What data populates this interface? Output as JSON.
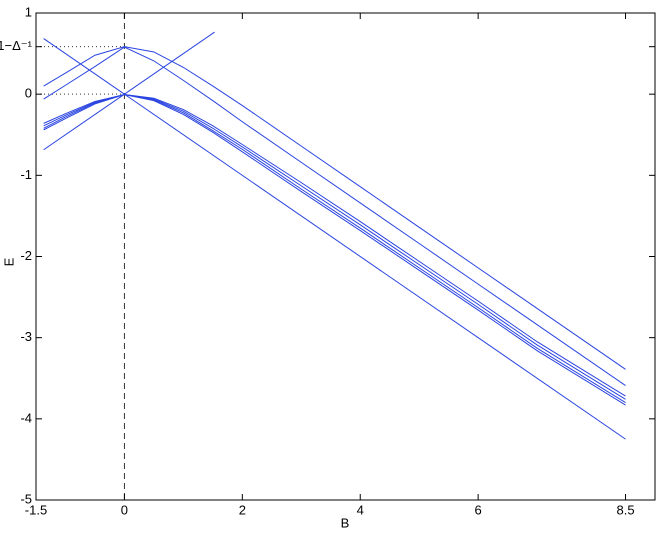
{
  "chart_data": {
    "type": "line",
    "xlabel": "B",
    "ylabel": "E",
    "xlim": [
      -1.5,
      9
    ],
    "ylim": [
      -5,
      1
    ],
    "xticks": [
      -1.5,
      0,
      2,
      4,
      6,
      8.5
    ],
    "yticks": [
      -5,
      -4,
      -3,
      -2,
      -1,
      0,
      {
        "value": 0.585,
        "label": "1−Δ⁻¹"
      },
      1
    ],
    "grid": false,
    "series": [
      {
        "color": "#2a44e0",
        "x": [
          -1.37,
          1.53
        ],
        "values": [
          -0.685,
          0.765
        ]
      },
      {
        "color": "#2a44e0",
        "x": [
          -1.37,
          8.5
        ],
        "values": [
          0.685,
          -4.25
        ]
      },
      {
        "color": "#2a44e0",
        "x": [
          -1.37,
          -1,
          -0.5,
          0,
          0.5,
          1,
          1.5,
          2,
          3,
          4,
          5,
          6,
          7,
          8.5
        ],
        "values": [
          0.1,
          0.26,
          0.48,
          0.585,
          0.52,
          0.33,
          0.1,
          -0.14,
          -0.64,
          -1.14,
          -1.64,
          -2.14,
          -2.64,
          -3.39
        ]
      },
      {
        "color": "#2a44e0",
        "x": [
          -1.37,
          -1,
          -0.5,
          0,
          0.5,
          1,
          1.5,
          2,
          3,
          4,
          5,
          6,
          7,
          8.5
        ],
        "values": [
          -0.06,
          0.11,
          0.34,
          0.58,
          0.41,
          0.17,
          -0.08,
          -0.34,
          -0.84,
          -1.34,
          -1.84,
          -2.34,
          -2.84,
          -3.59
        ]
      },
      {
        "color": "#2a44e0",
        "x": [
          -1.37,
          -1,
          -0.5,
          0,
          0.5,
          1,
          1.5,
          2,
          3,
          4,
          5,
          6,
          7,
          8.5
        ],
        "values": [
          -0.36,
          -0.24,
          -0.09,
          -0.005,
          -0.05,
          -0.19,
          -0.39,
          -0.62,
          -1.09,
          -1.57,
          -2.06,
          -2.55,
          -3.05,
          -3.72
        ]
      },
      {
        "color": "#2a44e0",
        "x": [
          -1.37,
          -1,
          -0.5,
          0,
          0.5,
          1,
          1.5,
          2,
          3,
          4,
          5,
          6,
          7,
          8.5
        ],
        "values": [
          -0.39,
          -0.26,
          -0.1,
          -0.005,
          -0.06,
          -0.21,
          -0.42,
          -0.65,
          -1.13,
          -1.61,
          -2.1,
          -2.59,
          -3.09,
          -3.76
        ]
      },
      {
        "color": "#2a44e0",
        "x": [
          -1.37,
          -1,
          -0.5,
          0,
          0.5,
          1,
          1.5,
          2,
          3,
          4,
          5,
          6,
          7,
          8.5
        ],
        "values": [
          -0.42,
          -0.28,
          -0.11,
          -0.005,
          -0.07,
          -0.23,
          -0.45,
          -0.68,
          -1.17,
          -1.65,
          -2.14,
          -2.63,
          -3.13,
          -3.8
        ]
      },
      {
        "color": "#2a44e0",
        "x": [
          -1.37,
          -1,
          -0.5,
          0,
          0.5,
          1,
          1.5,
          2,
          3,
          4,
          5,
          6,
          7,
          8.5
        ],
        "values": [
          -0.44,
          -0.3,
          -0.12,
          -0.005,
          -0.08,
          -0.25,
          -0.47,
          -0.71,
          -1.2,
          -1.68,
          -2.17,
          -2.66,
          -3.16,
          -3.83
        ]
      }
    ]
  }
}
